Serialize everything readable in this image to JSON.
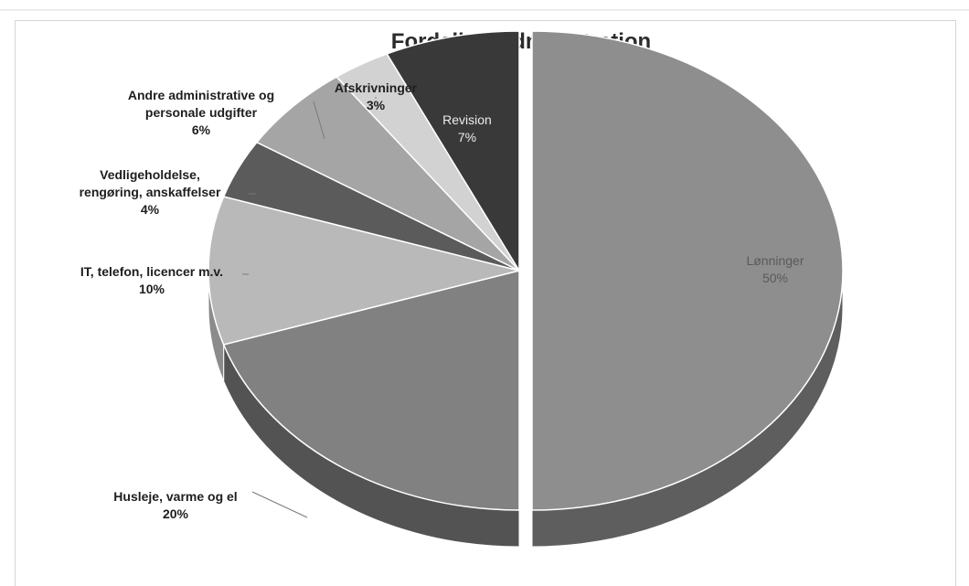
{
  "chart_data": {
    "type": "pie",
    "title": "Fordeling Administration",
    "slices": [
      {
        "name": "Lønninger",
        "label_lines": [
          "Lønninger"
        ],
        "value": 50,
        "pct_label": "50%",
        "color": "#8e8e8e",
        "side": "#5e5e5e"
      },
      {
        "name": "Husleje, varme og el",
        "label_lines": [
          "Husleje, varme og el"
        ],
        "value": 20,
        "pct_label": "20%",
        "color": "#818181",
        "side": "#535353"
      },
      {
        "name": "IT, telefon, licencer m.v.",
        "label_lines": [
          "IT, telefon, licencer m.v."
        ],
        "value": 10,
        "pct_label": "10%",
        "color": "#b9b9b9",
        "side": "#8b8b8b"
      },
      {
        "name": "Vedligeholdelse, rengøring, anskaffelser",
        "label_lines": [
          "Vedligeholdelse,",
          "rengøring, anskaffelser"
        ],
        "value": 4,
        "pct_label": "4%",
        "color": "#5b5b5b",
        "side": "#3c3c3c"
      },
      {
        "name": "Andre administrative og personale udgifter",
        "label_lines": [
          "Andre administrative og",
          "personale udgifter"
        ],
        "value": 6,
        "pct_label": "6%",
        "color": "#a5a5a5",
        "side": "#777777"
      },
      {
        "name": "Afskrivninger",
        "label_lines": [
          "Afskrivninger"
        ],
        "value": 3,
        "pct_label": "3%",
        "color": "#d2d2d2",
        "side": "#a2a2a2"
      },
      {
        "name": "Revision",
        "label_lines": [
          "Revision"
        ],
        "value": 7,
        "pct_label": "7%",
        "color": "#393939",
        "side": "#202020"
      }
    ],
    "start_angle_deg": 0,
    "direction": "clockwise",
    "exploded_slice": "Lønninger",
    "style": "3d",
    "legend": "none"
  }
}
